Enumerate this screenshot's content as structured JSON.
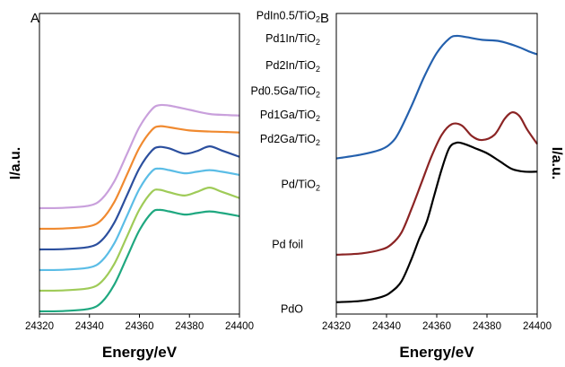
{
  "chart_data": [
    {
      "panel": "A",
      "type": "line",
      "xlabel": "Energy/eV",
      "ylabel": "I/a.u.",
      "xlim": [
        24320,
        24400
      ],
      "xticks": [
        24320,
        24340,
        24360,
        24380,
        24400
      ],
      "offset_step": 0.115,
      "series": [
        {
          "name": "PdIn0.5/TiO₂",
          "color": "#c9a0dc",
          "offset": 6,
          "x": [
            24320,
            24330,
            24340,
            24345,
            24350,
            24355,
            24360,
            24365,
            24368,
            24372,
            24380,
            24388,
            24395,
            24400
          ],
          "y": [
            0.0,
            0.004,
            0.025,
            0.09,
            0.26,
            0.52,
            0.78,
            0.95,
            0.99,
            0.985,
            0.945,
            0.905,
            0.895,
            0.89
          ]
        },
        {
          "name": "Pd1In/TiO₂",
          "color": "#f08a30",
          "offset": 5,
          "x": [
            24320,
            24330,
            24340,
            24345,
            24350,
            24355,
            24360,
            24365,
            24368,
            24372,
            24380,
            24388,
            24395,
            24400
          ],
          "y": [
            0.0,
            0.004,
            0.025,
            0.09,
            0.26,
            0.52,
            0.78,
            0.95,
            0.985,
            0.975,
            0.945,
            0.935,
            0.93,
            0.925
          ]
        },
        {
          "name": "Pd2In/TiO₂",
          "color": "#2b4f9e",
          "offset": 4,
          "x": [
            24320,
            24330,
            24340,
            24345,
            24350,
            24355,
            24360,
            24365,
            24368,
            24372,
            24378,
            24383,
            24388,
            24393,
            24400
          ],
          "y": [
            0.0,
            0.004,
            0.025,
            0.09,
            0.26,
            0.52,
            0.78,
            0.95,
            0.985,
            0.97,
            0.92,
            0.945,
            0.99,
            0.95,
            0.89
          ]
        },
        {
          "name": "Pd0.5Ga/TiO₂",
          "color": "#5bbde6",
          "offset": 3,
          "x": [
            24320,
            24330,
            24340,
            24345,
            24350,
            24355,
            24360,
            24365,
            24368,
            24372,
            24378,
            24383,
            24388,
            24393,
            24400
          ],
          "y": [
            0.0,
            0.004,
            0.025,
            0.09,
            0.26,
            0.52,
            0.78,
            0.95,
            0.975,
            0.96,
            0.93,
            0.945,
            0.96,
            0.945,
            0.915
          ]
        },
        {
          "name": "Pd1Ga/TiO₂",
          "color": "#9fcb58",
          "offset": 2,
          "x": [
            24320,
            24330,
            24340,
            24345,
            24350,
            24355,
            24360,
            24365,
            24368,
            24372,
            24378,
            24383,
            24388,
            24393,
            24400
          ],
          "y": [
            0.0,
            0.004,
            0.025,
            0.09,
            0.26,
            0.52,
            0.78,
            0.95,
            0.97,
            0.945,
            0.915,
            0.95,
            0.99,
            0.95,
            0.89
          ]
        },
        {
          "name": "Pd2Ga/TiO₂",
          "color": "#1fa880",
          "offset": 1,
          "x": [
            24320,
            24330,
            24340,
            24345,
            24350,
            24355,
            24360,
            24365,
            24368,
            24372,
            24378,
            24383,
            24388,
            24393,
            24400
          ],
          "y": [
            0.0,
            0.004,
            0.025,
            0.09,
            0.26,
            0.52,
            0.78,
            0.95,
            0.975,
            0.96,
            0.93,
            0.945,
            0.96,
            0.945,
            0.915
          ]
        },
        {
          "name": "Pd/TiO₂",
          "color": "",
          "offset": 0,
          "x": [],
          "y": []
        }
      ],
      "label_values": [
        0.995,
        0.92,
        0.83,
        0.745,
        0.665,
        0.585,
        0.435
      ]
    },
    {
      "panel": "B",
      "type": "line",
      "xlabel": "Energy/eV",
      "ylabel": "I/a.u.",
      "xlim": [
        24320,
        24400
      ],
      "xticks": [
        24320,
        24340,
        24360,
        24380,
        24400
      ],
      "series": [
        {
          "name": "Pd/TiO₂",
          "color": "#2460ad",
          "x": [
            24320,
            24330,
            24338,
            24342,
            24345,
            24350,
            24355,
            24360,
            24365,
            24368,
            24372,
            24378,
            24385,
            24392,
            24397,
            24400
          ],
          "y": [
            0.57,
            0.585,
            0.605,
            0.63,
            0.67,
            0.77,
            0.88,
            0.97,
            1.025,
            1.035,
            1.03,
            1.02,
            1.015,
            0.995,
            0.975,
            0.965
          ]
        },
        {
          "name": "Pd foil",
          "color": "#8b2424",
          "x": [
            24320,
            24330,
            24338,
            24342,
            24346,
            24350,
            24354,
            24358,
            24362,
            24366,
            24370,
            24374,
            24378,
            24383,
            24387,
            24390,
            24393,
            24396,
            24400
          ],
          "y": [
            0.205,
            0.21,
            0.225,
            0.245,
            0.29,
            0.38,
            0.48,
            0.58,
            0.66,
            0.7,
            0.695,
            0.655,
            0.64,
            0.66,
            0.72,
            0.745,
            0.73,
            0.68,
            0.625
          ]
        },
        {
          "name": "PdO",
          "color": "#000000",
          "x": [
            24320,
            24330,
            24338,
            24342,
            24346,
            24350,
            24353,
            24356,
            24359,
            24362,
            24365,
            24368,
            24371,
            24375,
            24380,
            24385,
            24390,
            24395,
            24400
          ],
          "y": [
            0.025,
            0.03,
            0.045,
            0.065,
            0.105,
            0.19,
            0.265,
            0.33,
            0.43,
            0.53,
            0.61,
            0.63,
            0.625,
            0.61,
            0.59,
            0.56,
            0.53,
            0.52,
            0.52
          ]
        }
      ],
      "label_values": [
        0.435,
        0.235,
        0.02
      ]
    }
  ]
}
